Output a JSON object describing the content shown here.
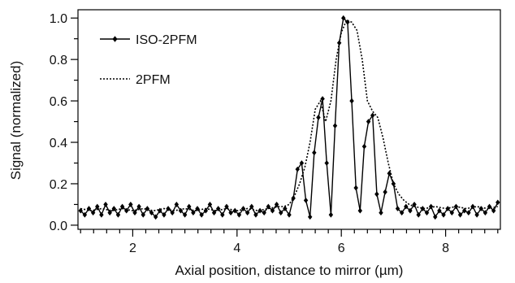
{
  "chart_data": {
    "type": "line",
    "xlabel": "Axial position, distance to mirror (µm)",
    "ylabel": "Signal (normalized)",
    "xlim": [
      0.95,
      9.05
    ],
    "ylim": [
      -0.02,
      1.04
    ],
    "x_ticks": [
      2,
      4,
      6,
      8
    ],
    "x_tick_labels": [
      "2",
      "4",
      "6",
      "8"
    ],
    "y_ticks": [
      0.0,
      0.2,
      0.4,
      0.6,
      0.8,
      1.0
    ],
    "y_tick_labels": [
      "0.0",
      "0.2",
      "0.4",
      "0.6",
      "0.8",
      "1.0"
    ],
    "legend_placement": "top-left",
    "grid": false,
    "colors": {
      "line": "#000000",
      "background": "#ffffff"
    },
    "series": [
      {
        "name": "ISO-2PFM",
        "style": "solid",
        "marker": "diamond",
        "x": [
          1.0,
          1.08,
          1.16,
          1.24,
          1.32,
          1.4,
          1.48,
          1.56,
          1.64,
          1.72,
          1.8,
          1.88,
          1.96,
          2.04,
          2.12,
          2.2,
          2.28,
          2.36,
          2.44,
          2.52,
          2.6,
          2.68,
          2.76,
          2.84,
          2.92,
          3.0,
          3.08,
          3.16,
          3.24,
          3.32,
          3.4,
          3.48,
          3.56,
          3.64,
          3.72,
          3.8,
          3.88,
          3.96,
          4.04,
          4.12,
          4.2,
          4.28,
          4.36,
          4.44,
          4.52,
          4.6,
          4.68,
          4.76,
          4.84,
          4.92,
          5.0,
          5.08,
          5.16,
          5.24,
          5.32,
          5.4,
          5.48,
          5.56,
          5.64,
          5.72,
          5.8,
          5.88,
          5.96,
          6.04,
          6.12,
          6.2,
          6.28,
          6.36,
          6.44,
          6.52,
          6.6,
          6.68,
          6.76,
          6.84,
          6.92,
          7.0,
          7.08,
          7.16,
          7.24,
          7.32,
          7.4,
          7.48,
          7.56,
          7.64,
          7.72,
          7.8,
          7.88,
          7.96,
          8.04,
          8.12,
          8.2,
          8.28,
          8.36,
          8.44,
          8.52,
          8.6,
          8.68,
          8.76,
          8.84,
          8.92,
          9.0
        ],
        "values": [
          0.07,
          0.05,
          0.08,
          0.06,
          0.09,
          0.05,
          0.1,
          0.06,
          0.08,
          0.05,
          0.09,
          0.07,
          0.1,
          0.06,
          0.09,
          0.05,
          0.08,
          0.06,
          0.04,
          0.07,
          0.05,
          0.08,
          0.06,
          0.1,
          0.07,
          0.05,
          0.09,
          0.06,
          0.08,
          0.05,
          0.07,
          0.1,
          0.06,
          0.08,
          0.05,
          0.09,
          0.06,
          0.07,
          0.05,
          0.08,
          0.06,
          0.09,
          0.05,
          0.07,
          0.06,
          0.09,
          0.07,
          0.1,
          0.06,
          0.08,
          0.05,
          0.13,
          0.27,
          0.3,
          0.12,
          0.04,
          0.35,
          0.52,
          0.61,
          0.3,
          0.05,
          0.48,
          0.88,
          1.0,
          0.98,
          0.6,
          0.18,
          0.07,
          0.38,
          0.5,
          0.53,
          0.15,
          0.06,
          0.16,
          0.25,
          0.2,
          0.08,
          0.06,
          0.09,
          0.07,
          0.1,
          0.05,
          0.08,
          0.06,
          0.09,
          0.04,
          0.07,
          0.05,
          0.08,
          0.06,
          0.09,
          0.05,
          0.07,
          0.06,
          0.09,
          0.05,
          0.08,
          0.06,
          0.09,
          0.07,
          0.11
        ]
      },
      {
        "name": "2PFM",
        "style": "dotted",
        "marker": "none",
        "x": [
          1.0,
          1.2,
          1.4,
          1.6,
          1.8,
          2.0,
          2.2,
          2.4,
          2.6,
          2.8,
          3.0,
          3.2,
          3.4,
          3.6,
          3.8,
          4.0,
          4.2,
          4.4,
          4.6,
          4.8,
          4.9,
          5.0,
          5.1,
          5.2,
          5.3,
          5.4,
          5.5,
          5.6,
          5.7,
          5.8,
          5.9,
          6.0,
          6.05,
          6.1,
          6.2,
          6.3,
          6.4,
          6.5,
          6.6,
          6.7,
          6.8,
          6.9,
          7.0,
          7.1,
          7.2,
          7.3,
          7.4,
          7.6,
          7.8,
          8.0,
          8.2,
          8.4,
          8.6,
          8.8,
          9.0
        ],
        "values": [
          0.08,
          0.07,
          0.08,
          0.07,
          0.08,
          0.07,
          0.08,
          0.07,
          0.08,
          0.07,
          0.08,
          0.07,
          0.08,
          0.07,
          0.08,
          0.07,
          0.08,
          0.07,
          0.08,
          0.09,
          0.09,
          0.1,
          0.14,
          0.2,
          0.28,
          0.4,
          0.56,
          0.6,
          0.5,
          0.6,
          0.8,
          0.93,
          0.96,
          0.99,
          0.98,
          0.94,
          0.8,
          0.6,
          0.55,
          0.52,
          0.42,
          0.3,
          0.2,
          0.15,
          0.12,
          0.1,
          0.09,
          0.08,
          0.09,
          0.08,
          0.09,
          0.08,
          0.09,
          0.08,
          0.09
        ]
      }
    ]
  }
}
